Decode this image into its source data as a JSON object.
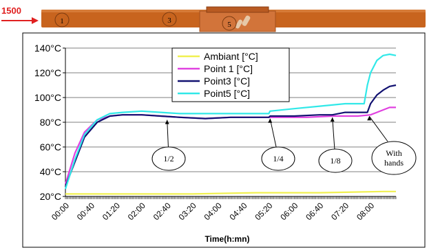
{
  "strip": {
    "arrow_label": "1500",
    "arrow_color": "#e02020",
    "bar_color": "#c8641e",
    "point_labels": [
      "1",
      "3",
      "5"
    ]
  },
  "chart_data": {
    "type": "line",
    "xlabel": "Time(h:mn)",
    "ylabel": "",
    "title": "",
    "x_unit": "minutes",
    "x_ticks": [
      "00:00",
      "00:40",
      "01:20",
      "02:00",
      "02:40",
      "03:20",
      "04:00",
      "04:40",
      "05:20",
      "06:00",
      "06:40",
      "07:20",
      "08:00"
    ],
    "x_tick_minutes": [
      0,
      40,
      80,
      120,
      160,
      200,
      240,
      280,
      320,
      360,
      400,
      440,
      480
    ],
    "xlim": [
      0,
      520
    ],
    "ylim": [
      20,
      140
    ],
    "y_ticks": [
      20,
      40,
      60,
      80,
      100,
      120,
      140
    ],
    "y_tick_labels": [
      "20°C",
      "40°C",
      "60°C",
      "80°C",
      "100°C",
      "120°C",
      "140°C"
    ],
    "grid": "horizontal",
    "legend_position": "top-center",
    "series": [
      {
        "name": "Ambiant [°C]",
        "color": "#f0f050",
        "x": [
          0,
          100,
          200,
          300,
          400,
          500,
          520
        ],
        "y": [
          22,
          22,
          22,
          23,
          23,
          24,
          24
        ]
      },
      {
        "name": "Point 1 [°C]",
        "color": "#e040e0",
        "x": [
          0,
          15,
          30,
          50,
          70,
          90,
          120,
          150,
          180,
          220,
          260,
          300,
          340,
          380,
          420,
          460,
          480,
          490,
          500,
          510,
          520
        ],
        "y": [
          30,
          55,
          72,
          82,
          85,
          86,
          86,
          85,
          84,
          83,
          84,
          84,
          84,
          84,
          85,
          85,
          86,
          88,
          90,
          92,
          92
        ]
      },
      {
        "name": "Point3 [°C]",
        "color": "#101070",
        "x": [
          0,
          15,
          30,
          50,
          70,
          90,
          120,
          150,
          180,
          220,
          260,
          300,
          320,
          322,
          360,
          400,
          420,
          440,
          460,
          475,
          480,
          490,
          500,
          510,
          520
        ],
        "y": [
          28,
          48,
          68,
          80,
          85,
          86,
          86,
          85,
          84,
          83,
          84,
          84,
          84,
          85,
          85,
          86,
          86,
          88,
          88,
          88,
          95,
          102,
          106,
          109,
          110
        ]
      },
      {
        "name": "Point5 [°C]",
        "color": "#30e8e8",
        "x": [
          0,
          15,
          30,
          50,
          70,
          90,
          120,
          150,
          180,
          220,
          260,
          300,
          320,
          322,
          360,
          400,
          440,
          460,
          470,
          475,
          480,
          490,
          500,
          510,
          520
        ],
        "y": [
          26,
          50,
          70,
          82,
          87,
          88,
          89,
          88,
          87,
          87,
          87,
          87,
          87,
          89,
          91,
          93,
          95,
          95,
          95,
          110,
          120,
          130,
          134,
          135,
          134
        ]
      }
    ],
    "annotations": [
      {
        "text": "1/2",
        "x": 160,
        "y": 83
      },
      {
        "text": "1/4",
        "x": 322,
        "y": 84
      },
      {
        "text": "1/8",
        "x": 420,
        "y": 85
      },
      {
        "text": "With\nhands",
        "x": 478,
        "y": 86
      }
    ]
  }
}
